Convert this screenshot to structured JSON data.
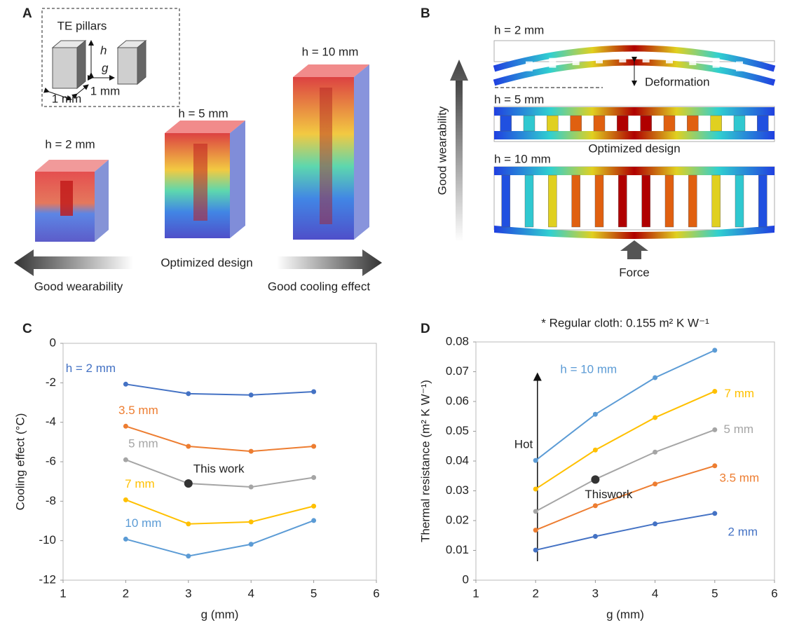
{
  "panel_a": {
    "label": "A",
    "inset_title": "TE pillars",
    "inset_h": "h",
    "inset_g": "g",
    "inset_width": "1 mm",
    "inset_depth": "1 mm",
    "blocks": [
      "h = 2 mm",
      "h = 5 mm",
      "h = 10 mm"
    ],
    "center_text": "Optimized design",
    "left_text": "Good wearability",
    "right_text": "Good cooling effect"
  },
  "panel_b": {
    "label": "B",
    "beams": [
      "h = 2 mm",
      "h = 5 mm",
      "h = 10 mm"
    ],
    "deformation": "Deformation",
    "optimized": "Optimized design",
    "axis_text": "Good wearability",
    "force": "Force"
  },
  "chart_data": [
    {
      "type": "line",
      "panel_label": "C",
      "x_label": "g (mm)",
      "y_label": "Cooling effect (°C)",
      "x": [
        2,
        3,
        4,
        5
      ],
      "xlim": [
        1,
        6
      ],
      "xticks": [
        1,
        2,
        3,
        4,
        5,
        6
      ],
      "ylim": [
        -12,
        0
      ],
      "yticks": [
        -12,
        -10,
        -8,
        -6,
        -4,
        -2,
        0
      ],
      "series": [
        {
          "name": "h = 2 mm",
          "color": "#4472c4",
          "values": [
            -2.07,
            -2.55,
            -2.62,
            -2.45
          ]
        },
        {
          "name": "3.5 mm",
          "color": "#ed7d31",
          "values": [
            -4.2,
            -5.22,
            -5.47,
            -5.22
          ]
        },
        {
          "name": "5 mm",
          "color": "#a5a5a5",
          "values": [
            -5.9,
            -7.1,
            -7.28,
            -6.8
          ]
        },
        {
          "name": "7 mm",
          "color": "#ffc000",
          "values": [
            -7.93,
            -9.15,
            -9.05,
            -8.25
          ]
        },
        {
          "name": "10 mm",
          "color": "#5b9bd5",
          "values": [
            -9.92,
            -10.78,
            -10.18,
            -8.98
          ]
        }
      ],
      "highlight": {
        "text": "This work",
        "x": 3,
        "y": -7.1,
        "color": "#333333"
      }
    },
    {
      "type": "line",
      "panel_label": "D",
      "subtitle": "* Regular cloth: 0.155 m² K W⁻¹",
      "x_label": "g (mm)",
      "y_label": "Thermal resistance (m² K W⁻¹)",
      "x": [
        2,
        3,
        4,
        5
      ],
      "xlim": [
        1,
        6
      ],
      "xticks": [
        1,
        2,
        3,
        4,
        5,
        6
      ],
      "ylim": [
        0,
        0.08
      ],
      "yticks": [
        0,
        0.01,
        0.02,
        0.03,
        0.04,
        0.05,
        0.06,
        0.07,
        0.08
      ],
      "series": [
        {
          "name": "h = 10 mm",
          "color": "#5b9bd5",
          "values": [
            0.0402,
            0.0557,
            0.068,
            0.0772
          ]
        },
        {
          "name": "7 mm",
          "color": "#ffc000",
          "values": [
            0.0306,
            0.0437,
            0.0546,
            0.0634
          ]
        },
        {
          "name": "5 mm",
          "color": "#a5a5a5",
          "values": [
            0.0231,
            0.0339,
            0.043,
            0.0505
          ]
        },
        {
          "name": "3.5 mm",
          "color": "#ed7d31",
          "values": [
            0.0168,
            0.025,
            0.0323,
            0.0384
          ]
        },
        {
          "name": "2 mm",
          "color": "#4472c4",
          "values": [
            0.0101,
            0.0147,
            0.0189,
            0.0224
          ]
        }
      ],
      "highlight": {
        "text": "Thiswork",
        "x": 3,
        "y": 0.0338,
        "color": "#333333"
      },
      "annotation": "Hot"
    }
  ]
}
